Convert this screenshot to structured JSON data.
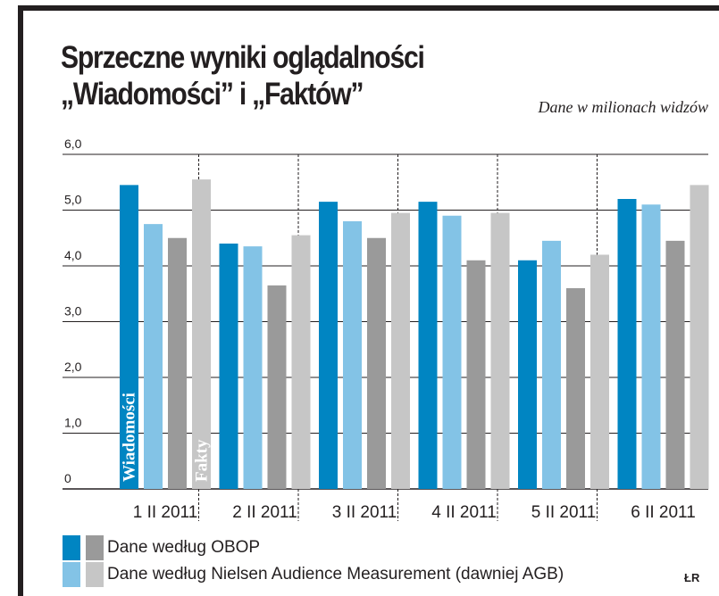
{
  "title": {
    "line1": "Sprzeczne wyniki oglądalności",
    "line2": "„Wiadomości” i „Faktów”"
  },
  "subtitle": "Dane w milionach widzów",
  "credit": "ŁR",
  "colors": {
    "obop_wiadomosci": "#0085c2",
    "nielsen_wiadomosci": "#83c3e6",
    "obop_fakty": "#9a9a9a",
    "nielsen_fakty": "#c6c6c6",
    "axis": "#231f20"
  },
  "legend": [
    {
      "label": "Dane według OBOP",
      "colors": [
        "#0085c2",
        "#9a9a9a"
      ]
    },
    {
      "label": "Dane według Nielsen Audience Measurement (dawniej AGB)",
      "colors": [
        "#83c3e6",
        "#c6c6c6"
      ]
    }
  ],
  "chart_data": {
    "type": "bar",
    "title": "Sprzeczne wyniki oglądalności „Wiadomości” i „Faktów”",
    "subtitle": "Dane w milionach widzów",
    "categories": [
      "1 II 2011",
      "2 II 2011",
      "3 II 2011",
      "4 II 2011",
      "5 II 2011",
      "6 II 2011"
    ],
    "series": [
      {
        "name": "Wiadomości – Dane według OBOP",
        "color": "#0085c2",
        "values": [
          5.45,
          4.4,
          5.15,
          5.15,
          4.1,
          5.2
        ]
      },
      {
        "name": "Wiadomości – Dane według Nielsen Audience Measurement (dawniej AGB)",
        "color": "#83c3e6",
        "values": [
          4.75,
          4.35,
          4.8,
          4.9,
          4.45,
          5.1
        ]
      },
      {
        "name": "Fakty – Dane według OBOP",
        "color": "#9a9a9a",
        "values": [
          4.5,
          3.65,
          4.5,
          4.1,
          3.6,
          4.45
        ]
      },
      {
        "name": "Fakty – Dane według Nielsen Audience Measurement (dawniej AGB)",
        "color": "#c6c6c6",
        "values": [
          5.55,
          4.55,
          4.95,
          4.95,
          4.2,
          5.45
        ]
      }
    ],
    "bar_labels": [
      "Wiadomości",
      "Fakty"
    ],
    "yticks": [
      "0",
      "1,0",
      "2,0",
      "3,0",
      "4,0",
      "5,0",
      "6,0"
    ],
    "ylim": [
      0,
      6
    ],
    "xlabel": "",
    "ylabel": "",
    "grid": "horizontal solid, vertical dashed",
    "legend_position": "bottom"
  }
}
